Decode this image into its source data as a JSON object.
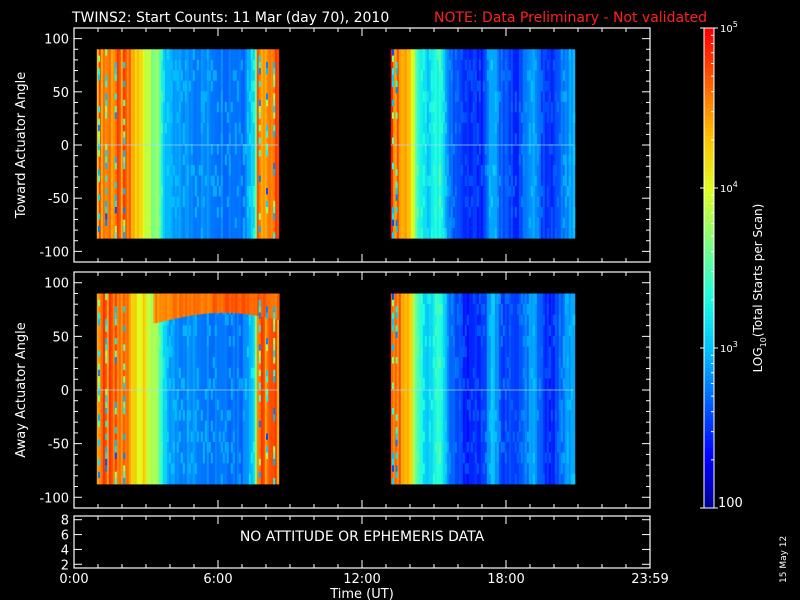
{
  "title": "TWINS2: Start Counts: 11 Mar (day  70), 2010",
  "note": "NOTE: Data Preliminary - Not validated",
  "no_data_message": "NO ATTITUDE OR EPHEMERIS DATA",
  "date_stamp": "15 May 12",
  "colors": {
    "note": "#ff2020",
    "background": "#000000",
    "foreground": "#ffffff"
  },
  "colorbar": {
    "label": "LOG10(Total Starts per Scan)",
    "label_prefix": "LOG",
    "label_sub": "10",
    "label_suffix": "(Total Starts per Scan)",
    "scale": "log",
    "range": [
      100,
      100000
    ],
    "ticks": [
      {
        "value": 100,
        "label": "100"
      },
      {
        "value": 1000,
        "base": "10",
        "exp": "3"
      },
      {
        "value": 10000,
        "base": "10",
        "exp": "4"
      },
      {
        "value": 100000,
        "base": "10",
        "exp": "5"
      }
    ],
    "colormap": [
      "#00008f",
      "#0000ff",
      "#0060ff",
      "#00c0ff",
      "#20ffdf",
      "#80ff80",
      "#dfff20",
      "#ffc000",
      "#ff6000",
      "#ff0000"
    ]
  },
  "x_axis": {
    "label": "Time (UT)",
    "ticks": [
      "0:00",
      "6:00",
      "12:00",
      "18:00",
      "23:59"
    ],
    "range_hours": [
      0,
      24
    ]
  },
  "chart_data": [
    {
      "type": "heatmap",
      "ylabel": "Toward Actuator Angle",
      "ylim": [
        -110,
        110
      ],
      "yticks": [
        100,
        50,
        0,
        -50,
        -100
      ],
      "data_y_range": [
        -88,
        90
      ],
      "segments": [
        {
          "start_h": 0.95,
          "end_h": 8.5,
          "profile": [
            [
              0.95,
              4.6
            ],
            [
              2.2,
              4.55
            ],
            [
              2.5,
              4.3
            ],
            [
              2.8,
              4.1
            ],
            [
              3.2,
              3.9
            ],
            [
              3.5,
              3.6
            ],
            [
              3.7,
              3.1
            ],
            [
              4.0,
              2.85
            ],
            [
              5.5,
              2.8
            ],
            [
              7.0,
              2.75
            ],
            [
              7.5,
              3.2
            ],
            [
              7.6,
              4.6
            ],
            [
              8.5,
              4.6
            ]
          ],
          "streak_hours": [
            1.0,
            1.3,
            1.7,
            2.05,
            7.7,
            8.0,
            8.3
          ]
        },
        {
          "start_h": 13.2,
          "end_h": 20.8,
          "profile": [
            [
              13.2,
              4.7
            ],
            [
              13.9,
              4.45
            ],
            [
              14.3,
              3.4
            ],
            [
              14.7,
              3.05
            ],
            [
              15.2,
              3.4
            ],
            [
              15.6,
              2.7
            ],
            [
              16.3,
              2.45
            ],
            [
              17.0,
              2.5
            ],
            [
              17.4,
              3.0
            ],
            [
              17.8,
              2.6
            ],
            [
              18.4,
              2.5
            ],
            [
              19.1,
              2.9
            ],
            [
              19.6,
              2.45
            ],
            [
              20.0,
              2.5
            ],
            [
              20.4,
              2.8
            ],
            [
              20.8,
              2.9
            ]
          ],
          "streak_hours": [
            13.25,
            13.4
          ]
        }
      ]
    },
    {
      "type": "heatmap",
      "ylabel": "Away Actuator Angle",
      "ylim": [
        -110,
        110
      ],
      "yticks": [
        100,
        50,
        0,
        -50,
        -100
      ],
      "data_y_range": [
        -88,
        90
      ],
      "segments": [
        {
          "start_h": 0.95,
          "end_h": 8.5,
          "profile": [
            [
              0.95,
              4.6
            ],
            [
              2.2,
              4.55
            ],
            [
              2.5,
              4.3
            ],
            [
              2.8,
              4.1
            ],
            [
              3.2,
              3.9
            ],
            [
              3.5,
              3.6
            ],
            [
              3.7,
              3.1
            ],
            [
              4.0,
              2.85
            ],
            [
              5.5,
              2.8
            ],
            [
              7.0,
              2.75
            ],
            [
              7.5,
              3.2
            ],
            [
              7.6,
              4.6
            ],
            [
              8.5,
              4.6
            ]
          ],
          "streak_hours": [
            1.0,
            1.3,
            1.7,
            2.05,
            7.7,
            8.0,
            8.3
          ],
          "enhanced_band": {
            "angle_range": [
              62,
              90
            ],
            "hours": [
              3.3,
              8.5
            ],
            "log_value": 4.7
          }
        },
        {
          "start_h": 13.2,
          "end_h": 20.8,
          "profile": [
            [
              13.2,
              4.7
            ],
            [
              13.9,
              4.45
            ],
            [
              14.3,
              3.4
            ],
            [
              14.7,
              3.05
            ],
            [
              15.2,
              3.4
            ],
            [
              15.6,
              2.7
            ],
            [
              16.3,
              2.45
            ],
            [
              17.0,
              2.5
            ],
            [
              17.4,
              3.0
            ],
            [
              17.8,
              2.6
            ],
            [
              18.4,
              2.5
            ],
            [
              19.1,
              2.9
            ],
            [
              19.6,
              2.45
            ],
            [
              20.0,
              2.5
            ],
            [
              20.4,
              2.8
            ],
            [
              20.8,
              2.9
            ]
          ],
          "streak_hours": [
            13.25,
            13.4
          ]
        }
      ]
    },
    {
      "type": "line",
      "ylim": [
        1.5,
        8.5
      ],
      "yticks": [
        8,
        6,
        4,
        2
      ],
      "series": []
    }
  ]
}
